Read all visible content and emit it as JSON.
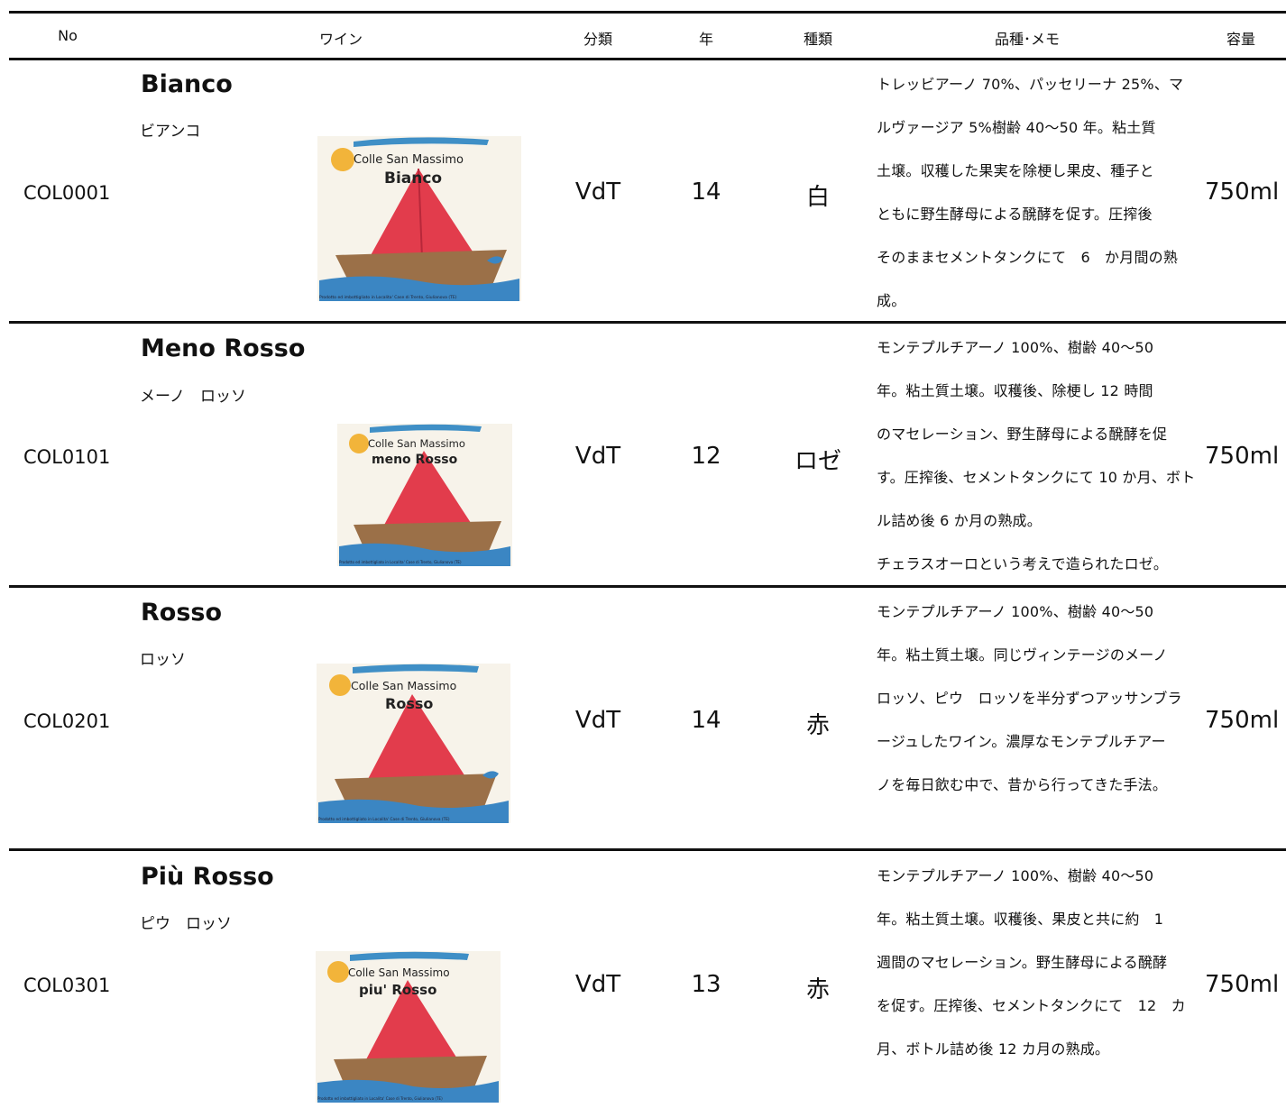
{
  "header": {
    "no": "No",
    "wine": "ワイン",
    "classification": "分類",
    "year": "年",
    "type": "種類",
    "memo": "品種･メモ",
    "volume": "容量"
  },
  "wines": [
    {
      "no": "COL0001",
      "name": "Bianco",
      "kana": "ビアンコ",
      "classification": "VdT",
      "year": "14",
      "type": "白",
      "volume": "750ml",
      "label_brand": "Colle San Massimo",
      "label_name": "Bianco",
      "label_footer": "Prodotto ed imbottigliato in Localita' Case di Trento, Giulianova (TE)",
      "memo_lines": [
        "トレッビアーノ 70%、パッセリーナ 25%、マ",
        "ルヴァージア 5%樹齢 40～50 年。粘土質",
        "土壌。収穫した果実を除梗し果皮、種子と",
        "ともに野生酵母による醗酵を促す。圧搾後",
        "そのままセメントタンクにて　6　か月間の熟",
        "成。"
      ]
    },
    {
      "no": "COL0101",
      "name": "Meno Rosso",
      "kana": "メーノ　ロッソ",
      "classification": "VdT",
      "year": "12",
      "type": "ロゼ",
      "volume": "750ml",
      "label_brand": "Colle San Massimo",
      "label_name": "meno Rosso",
      "label_footer": "Prodotto ed imbottigliato in Localita' Case di Trento, Giulianova (TE)",
      "memo_lines": [
        "モンテプルチアーノ 100%、樹齢 40～50",
        "年。粘土質土壌。収穫後、除梗し 12 時間",
        "のマセレーション、野生酵母による醗酵を促",
        "す。圧搾後、セメントタンクにて 10 か月、ボト",
        "ル詰め後 6 か月の熟成。",
        "チェラスオーロという考えで造られたロゼ。"
      ]
    },
    {
      "no": "COL0201",
      "name": "Rosso",
      "kana": "ロッソ",
      "classification": "VdT",
      "year": "14",
      "type": "赤",
      "volume": "750ml",
      "label_brand": "Colle San Massimo",
      "label_name": "Rosso",
      "label_footer": "Prodotto ed imbottigliato in Localita' Case di Trento, Giulianova (TE)",
      "memo_lines": [
        "モンテプルチアーノ 100%、樹齢 40～50",
        "年。粘土質土壌。同じヴィンテージのメーノ",
        "ロッソ、ピウ　ロッソを半分ずつアッサンブラ",
        "ージュしたワイン。濃厚なモンテプルチアー",
        "ノを毎日飲む中で、昔から行ってきた手法。"
      ]
    },
    {
      "no": "COL0301",
      "name": "Più Rosso",
      "kana": "ピウ　ロッソ",
      "classification": "VdT",
      "year": "13",
      "type": "赤",
      "volume": "750ml",
      "label_brand": "Colle San Massimo",
      "label_name": "piu' Rosso",
      "label_footer": "Prodotto ed imbottigliato in Localita' Case di Trento, Giulianova (TE)",
      "memo_lines": [
        "モンテプルチアーノ 100%、樹齢 40～50",
        "年。粘土質土壌。収穫後、果皮と共に約　1",
        "週間のマセレーション。野生酵母による醗酵",
        "を促す。圧搾後、セメントタンクにて　12　カ",
        "月、ボトル詰め後 12 カ月の熟成。"
      ]
    }
  ]
}
